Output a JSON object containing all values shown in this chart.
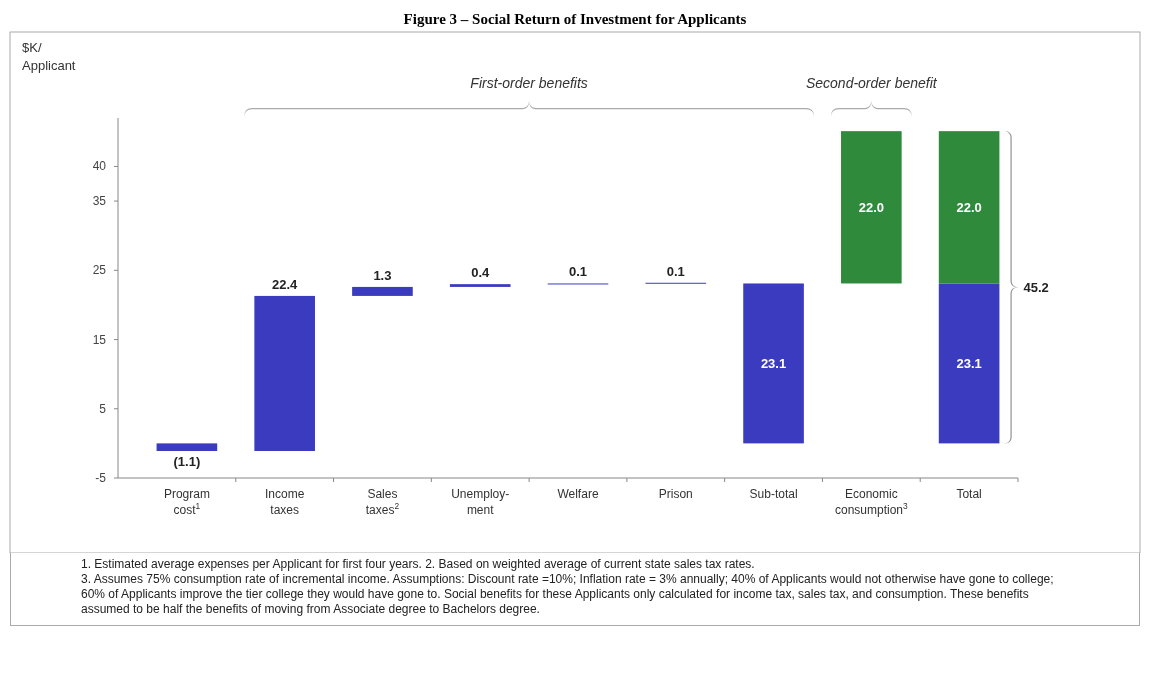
{
  "chart_data": {
    "type": "bar",
    "title": "Figure 3 – Social Return of Investment for Applicants",
    "ylabel": "$K/ Applicant",
    "categories": [
      "Program cost$^{1}$",
      "Income taxes",
      "Sales taxes$^{2}$",
      "Unemploy-ment",
      "Welfare",
      "Prison",
      "Sub-total",
      "Economic consumption$^{3}$",
      "Total"
    ],
    "series": [
      {
        "color": "#3b3bbf",
        "base": [
          0,
          -1.1,
          21.3,
          22.6,
          23.0,
          23.1,
          0,
          null,
          0
        ],
        "values": [
          -1.1,
          22.4,
          1.3,
          0.4,
          0.1,
          0.1,
          23.1,
          null,
          23.1
        ],
        "value_labels": [
          "(1.1)",
          "22.4",
          "1.3",
          "0.4",
          "0.1",
          "0.1",
          "23.1",
          null,
          "23.1"
        ]
      },
      {
        "color": "#2f8a3c",
        "base": [
          null,
          null,
          null,
          null,
          null,
          null,
          null,
          23.1,
          23.1
        ],
        "values": [
          null,
          null,
          null,
          null,
          null,
          null,
          null,
          22.0,
          22.0
        ],
        "value_labels": [
          null,
          null,
          null,
          null,
          null,
          null,
          null,
          "22.0",
          "22.0"
        ]
      }
    ],
    "totals": [
      null,
      null,
      null,
      null,
      null,
      null,
      null,
      null,
      "45.2"
    ],
    "ylim": [
      -5,
      47
    ],
    "yticks": [
      -5,
      5,
      15,
      25,
      35,
      40
    ],
    "annotations": [
      "First-order benefits",
      "Second-order benefit",
      "1. Estimated average expenses per Applicant for first four years. 2. Based on weighted average of current state sales tax rates.",
      "3. Assumes 75% consumption rate of incremental income. Assumptions: Discount rate =10%; Inflation rate = 3% annually; 40% of Applicants would not otherwise have gone to college; 60% of Applicants improve the tier college they would have gone to. Social benefits for these Applicants only calculated for income tax, sales tax, and consumption. These benefits assumed to be half the benefits of moving from Associate degree to Bachelors degree."
    ]
  }
}
